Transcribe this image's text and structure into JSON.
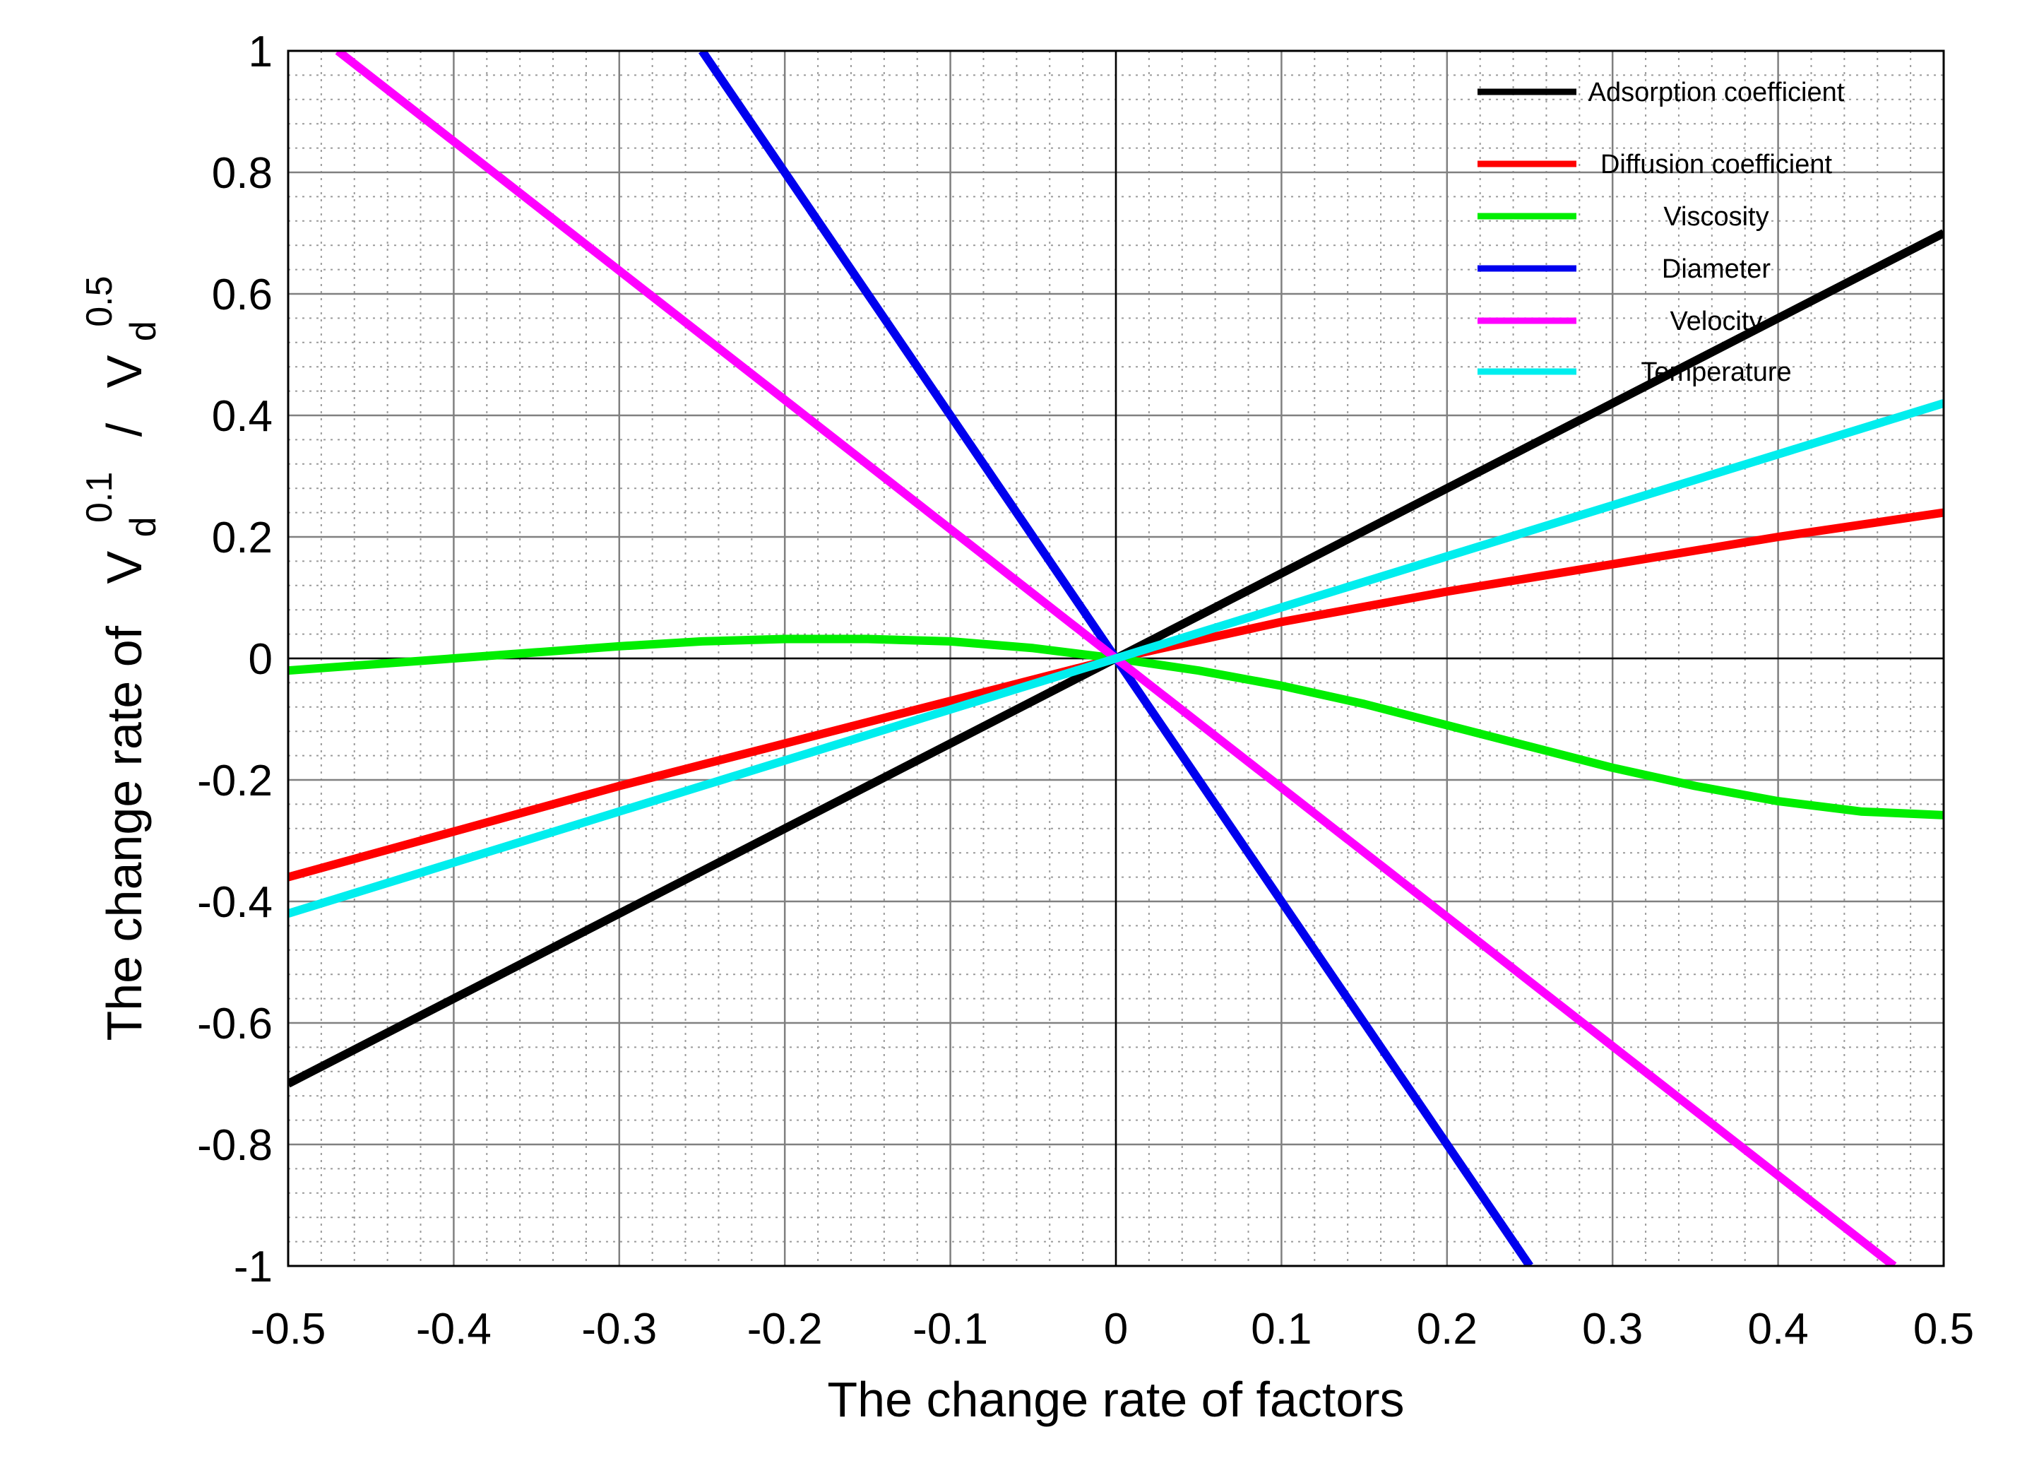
{
  "chart_data": {
    "type": "line",
    "title": "",
    "xlabel": "The change rate of factors",
    "ylabel": {
      "prefix": "The change rate of",
      "num_base": "V",
      "num_sub": "d",
      "num_sup": "0.1",
      "divider": "/",
      "den_base": "V",
      "den_sub": "d",
      "den_sup": "0.5"
    },
    "xlim": [
      -0.5,
      0.5
    ],
    "ylim": [
      -1,
      1
    ],
    "x_ticks": [
      -0.5,
      -0.4,
      -0.3,
      -0.2,
      -0.1,
      0,
      0.1,
      0.2,
      0.3,
      0.4,
      0.5
    ],
    "x_tick_labels": [
      "-0.5",
      "-0.4",
      "-0.3",
      "-0.2",
      "-0.1",
      "0",
      "0.1",
      "0.2",
      "0.3",
      "0.4",
      "0.5"
    ],
    "y_ticks": [
      1,
      0.8,
      0.6,
      0.4,
      0.2,
      0,
      -0.2,
      -0.4,
      -0.6,
      -0.8,
      -1
    ],
    "y_tick_labels": [
      "1",
      "0.8",
      "0.6",
      "0.4",
      "0.2",
      "0",
      "-0.2",
      "-0.4",
      "-0.6",
      "-0.8",
      "-1"
    ],
    "grid": true,
    "minor_grid": true,
    "legend_position": "top-right",
    "series": [
      {
        "name": "Adsorption coefficient",
        "color": "#000000",
        "x": [
          -0.5,
          0.5
        ],
        "y": [
          -0.7,
          0.7
        ]
      },
      {
        "name": "Diffusion coefficient",
        "color": "#ff0000",
        "x": [
          -0.5,
          -0.4,
          -0.3,
          -0.2,
          -0.1,
          0,
          0.1,
          0.2,
          0.3,
          0.4,
          0.5
        ],
        "y": [
          -0.36,
          -0.285,
          -0.21,
          -0.14,
          -0.07,
          0,
          0.06,
          0.11,
          0.155,
          0.2,
          0.24
        ]
      },
      {
        "name": "Viscosity",
        "color": "#00ee00",
        "x": [
          -0.5,
          -0.45,
          -0.4,
          -0.35,
          -0.3,
          -0.25,
          -0.2,
          -0.15,
          -0.1,
          -0.05,
          0,
          0.05,
          0.1,
          0.15,
          0.2,
          0.25,
          0.3,
          0.35,
          0.4,
          0.45,
          0.5
        ],
        "y": [
          -0.02,
          -0.01,
          0.0,
          0.01,
          0.02,
          0.028,
          0.032,
          0.032,
          0.028,
          0.017,
          0,
          -0.02,
          -0.045,
          -0.075,
          -0.11,
          -0.145,
          -0.18,
          -0.21,
          -0.235,
          -0.252,
          -0.258
        ]
      },
      {
        "name": "Diameter",
        "color": "#0000ee",
        "x": [
          -0.25,
          0.25
        ],
        "y": [
          1,
          -1
        ]
      },
      {
        "name": "Velocity",
        "color": "#ff00ff",
        "x": [
          -0.47,
          0.47
        ],
        "y": [
          1,
          -1
        ]
      },
      {
        "name": "Temperature",
        "color": "#00eeee",
        "x": [
          -0.5,
          0.5
        ],
        "y": [
          -0.42,
          0.42
        ]
      }
    ]
  }
}
